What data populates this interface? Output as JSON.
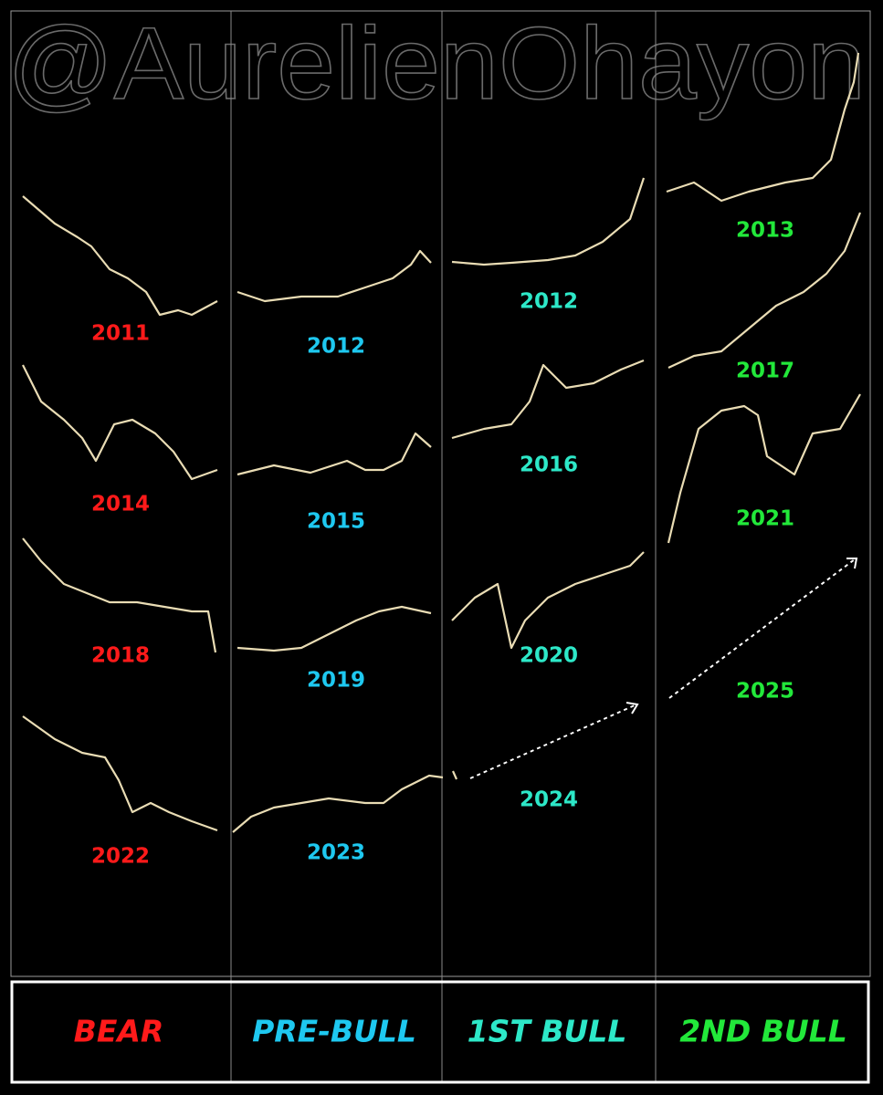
{
  "watermark": "@AurelienOhayon",
  "columns": [
    {
      "label": "BEAR",
      "color": "#ff1a1a",
      "years": [
        "2011",
        "2014",
        "2018",
        "2022"
      ]
    },
    {
      "label": "PRE-BULL",
      "color": "#1ec8f0",
      "years": [
        "2012",
        "2015",
        "2019",
        "2023"
      ]
    },
    {
      "label": "1ST BULL",
      "color": "#2de8c8",
      "years": [
        "2012",
        "2016",
        "2020",
        "2024"
      ]
    },
    {
      "label": "2ND BULL",
      "color": "#22e83a",
      "years": [
        "2013",
        "2017",
        "2021",
        "2025"
      ]
    }
  ]
}
